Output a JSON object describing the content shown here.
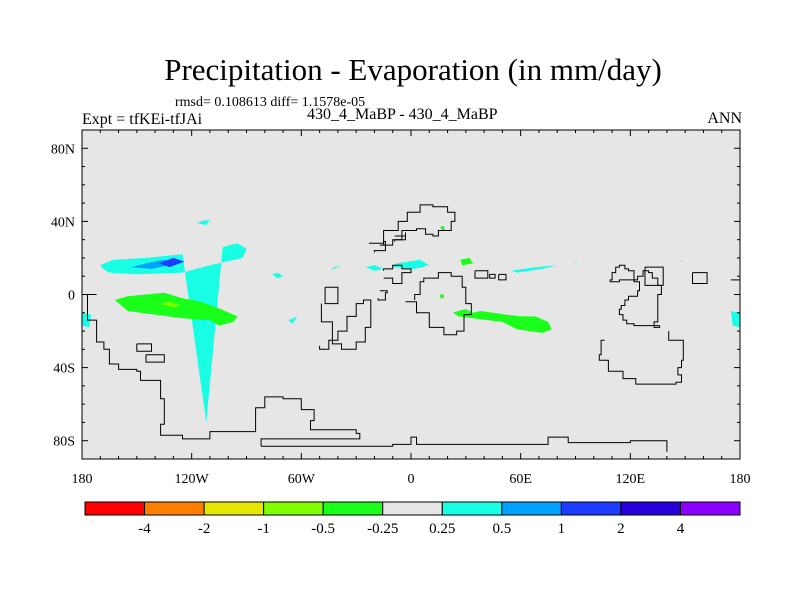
{
  "header": {
    "title": "Precipitation - Evaporation (in mm/day)",
    "stats": "rmsd= 0.108613 diff= 1.1578e-05",
    "expt": "Expt = tfKEi-tfJAi",
    "cases": "430_4_MaBP - 430_4_MaBP",
    "season": "ANN"
  },
  "chart_data": {
    "type": "heatmap",
    "title": "Precipitation - Evaporation (in mm/day)",
    "xlabel": "",
    "ylabel": "",
    "xlim": [
      -180,
      180
    ],
    "ylim": [
      -90,
      90
    ],
    "x_ticks": [
      {
        "value": -180,
        "label": "180"
      },
      {
        "value": -120,
        "label": "120W"
      },
      {
        "value": -60,
        "label": "60W"
      },
      {
        "value": 0,
        "label": "0"
      },
      {
        "value": 60,
        "label": "60E"
      },
      {
        "value": 120,
        "label": "120E"
      },
      {
        "value": 180,
        "label": "180"
      }
    ],
    "y_ticks": [
      {
        "value": 80,
        "label": "80N"
      },
      {
        "value": 40,
        "label": "40N"
      },
      {
        "value": 0,
        "label": "0"
      },
      {
        "value": -40,
        "label": "40S"
      },
      {
        "value": -80,
        "label": "80S"
      }
    ],
    "background_color": "#e6e6e6",
    "levels": [
      {
        "label": "-4",
        "value": -4
      },
      {
        "label": "-2",
        "value": -2
      },
      {
        "label": "-1",
        "value": -1
      },
      {
        "label": "-0.5",
        "value": -0.5
      },
      {
        "label": "-0.25",
        "value": -0.25
      },
      {
        "label": "0.25",
        "value": 0.25
      },
      {
        "label": "0.5",
        "value": 0.5
      },
      {
        "label": "1",
        "value": 1
      },
      {
        "label": "2",
        "value": 2
      },
      {
        "label": "4",
        "value": 4
      }
    ],
    "colors": [
      "#ff0000",
      "#ff8000",
      "#e6e600",
      "#80ff00",
      "#19ff19",
      "#e6e6e6",
      "#19ffe6",
      "#00a0ff",
      "#1e3cff",
      "#2800dc",
      "#8c00ff"
    ],
    "anomaly_regions": [
      {
        "band": "0.25",
        "color": "#19ffe6",
        "lon": [
          -168.5,
          -170,
          -163,
          -145,
          -125,
          -112,
          -103,
          -95,
          -90,
          -92,
          -110,
          -125,
          -150,
          -165
        ],
        "lat": [
          14,
          16,
          19,
          20,
          22,
          -70,
          26,
          28,
          25,
          20,
          16,
          12,
          11,
          12
        ]
      },
      {
        "band": "0.5",
        "color": "#00a0ff",
        "lon": [
          -153,
          -145,
          -135,
          -128,
          -142
        ],
        "lat": [
          15,
          17,
          19,
          17,
          14
        ]
      },
      {
        "band": "1",
        "color": "#1e3cff",
        "lon": [
          -138,
          -130,
          -124,
          -132
        ],
        "lat": [
          17,
          20,
          18,
          15
        ]
      },
      {
        "band": "0.25",
        "color": "#19ffe6",
        "lon": [
          -76,
          -73,
          -70,
          -73
        ],
        "lat": [
          11,
          12,
          10,
          9
        ]
      },
      {
        "band": "0.25",
        "color": "#19ffe6",
        "lon": [
          -42,
          -38,
          -44
        ],
        "lat": [
          15,
          16,
          13
        ]
      },
      {
        "band": "0.25",
        "color": "#19ffe6",
        "lon": [
          -25,
          -20,
          -15,
          -20
        ],
        "lat": [
          15,
          16,
          14,
          13
        ]
      },
      {
        "band": "0.25",
        "color": "#19ffe6",
        "lon": [
          -8,
          5,
          10,
          2,
          -10
        ],
        "lat": [
          17,
          19,
          16,
          14,
          15
        ]
      },
      {
        "band": "0.25",
        "color": "#19ffe6",
        "lon": [
          -67,
          -62,
          -65
        ],
        "lat": [
          -14,
          -12,
          -16
        ]
      },
      {
        "band": "0.25",
        "color": "#19ffe6",
        "lon": [
          -115,
          -110,
          -112,
          -117
        ],
        "lat": [
          40,
          41,
          38,
          39
        ]
      },
      {
        "band": "0.25",
        "color": "#19ffe6",
        "lon": [
          55,
          68,
          80,
          72,
          58
        ],
        "lat": [
          13,
          15,
          16,
          14,
          12
        ]
      },
      {
        "band": "0.25",
        "color": "#19ffe6",
        "lon": [
          89,
          91,
          90
        ],
        "lat": [
          17,
          18,
          17
        ]
      },
      {
        "band": "0.25",
        "color": "#19ffe6",
        "lon": [
          147,
          149,
          148
        ],
        "lat": [
          18,
          19,
          18
        ]
      },
      {
        "band": "0.25",
        "color": "#19ffe6",
        "lon": [
          -180,
          -175,
          -176,
          -180
        ],
        "lat": [
          -10,
          -11,
          -18,
          -17
        ]
      },
      {
        "band": "0.25",
        "color": "#19ffe6",
        "lon": [
          175,
          180,
          180,
          176
        ],
        "lat": [
          -9,
          -10,
          -18,
          -17
        ]
      },
      {
        "band": "-0.25",
        "color": "#19ff19",
        "lon": [
          -162,
          -155,
          -145,
          -135,
          -125,
          -115,
          -104,
          -95,
          -97,
          -105,
          -110,
          -125,
          -140,
          -155
        ],
        "lat": [
          -3,
          -1,
          0,
          1,
          -2,
          -4,
          -8,
          -12,
          -15,
          -17,
          -14,
          -13,
          -11,
          -9
        ]
      },
      {
        "band": "-0.5",
        "color": "#80ff00",
        "lon": [
          -138,
          -132,
          -126,
          -130
        ],
        "lat": [
          -5,
          -4,
          -6,
          -7
        ]
      },
      {
        "band": "-0.25",
        "color": "#19ff19",
        "lon": [
          27,
          32,
          34,
          28
        ],
        "lat": [
          19,
          20,
          17,
          16
        ]
      },
      {
        "band": "-0.25",
        "color": "#19ff19",
        "lon": [
          16,
          18,
          18.5,
          17
        ],
        "lat": [
          37,
          37.5,
          35.5,
          35
        ]
      },
      {
        "band": "-0.25",
        "color": "#19ff19",
        "lon": [
          16,
          18,
          18,
          16
        ],
        "lat": [
          0,
          0,
          -2,
          -2
        ]
      },
      {
        "band": "-0.25",
        "color": "#19ff19",
        "lon": [
          23,
          26,
          30,
          34,
          38,
          45,
          52,
          60,
          68,
          75,
          77,
          72,
          65,
          58,
          50,
          42,
          34,
          26
        ],
        "lat": [
          -10,
          -9,
          -8,
          -10,
          -9,
          -10,
          -11,
          -12,
          -12,
          -15,
          -19,
          -21,
          -20,
          -19,
          -15,
          -14,
          -13,
          -12
        ]
      }
    ],
    "outline_lon_lat": [
      [
        [
          -172,
          0
        ],
        [
          -177,
          -14
        ],
        [
          -172,
          -26
        ],
        [
          -168,
          -30
        ],
        [
          -165,
          -38
        ],
        [
          -160,
          -41
        ],
        [
          -150,
          -42
        ],
        [
          -148,
          -47
        ],
        [
          -137,
          -57
        ],
        [
          -135,
          -71
        ],
        [
          -137,
          -77
        ],
        [
          -125,
          -79
        ],
        [
          -110,
          -75
        ],
        [
          -90,
          -75
        ],
        [
          -85,
          -62
        ],
        [
          -80,
          -56
        ],
        [
          -70,
          -57
        ],
        [
          -60,
          -63
        ],
        [
          -53,
          -69
        ],
        [
          -55,
          -74
        ],
        [
          -40,
          -74
        ],
        [
          -30,
          -76
        ],
        [
          -28,
          -79
        ],
        [
          -82,
          -80
        ],
        [
          -82,
          -83
        ]
      ],
      [
        [
          -82,
          -83
        ],
        [
          -70,
          -83
        ],
        [
          -10,
          -82
        ],
        [
          -3,
          -82
        ],
        [
          0,
          -78
        ],
        [
          3,
          -82
        ],
        [
          75,
          -82
        ],
        [
          75,
          -78
        ],
        [
          86,
          -78
        ],
        [
          86,
          -81
        ],
        [
          103,
          -81
        ],
        [
          120,
          -80
        ],
        [
          130,
          -80
        ],
        [
          140,
          -82
        ],
        [
          140,
          -86
        ]
      ],
      [
        [
          106,
          -25
        ],
        [
          104,
          -33
        ],
        [
          103,
          -36
        ],
        [
          108,
          -42
        ],
        [
          116,
          -46
        ],
        [
          123,
          -49
        ],
        [
          132,
          -49
        ],
        [
          139,
          -49
        ],
        [
          145,
          -48
        ],
        [
          148,
          -44
        ],
        [
          146,
          -40
        ],
        [
          148,
          -36
        ],
        [
          149,
          -25
        ],
        [
          143,
          -25
        ],
        [
          141,
          -20
        ]
      ],
      [
        [
          136,
          -17
        ],
        [
          133,
          -15
        ],
        [
          135,
          0
        ],
        [
          137,
          5
        ],
        [
          135,
          9
        ],
        [
          132,
          12
        ],
        [
          130,
          13
        ],
        [
          127,
          10
        ],
        [
          124,
          8
        ],
        [
          119,
          8
        ],
        [
          114,
          7
        ],
        [
          109,
          8
        ],
        [
          110,
          12
        ],
        [
          112,
          15
        ],
        [
          114,
          16
        ],
        [
          117,
          14
        ],
        [
          119,
          13
        ],
        [
          122,
          7
        ],
        [
          125,
          2
        ],
        [
          124,
          -1
        ],
        [
          119,
          -3
        ],
        [
          117,
          -6
        ],
        [
          115,
          -8
        ],
        [
          114,
          -11
        ],
        [
          116,
          -14
        ],
        [
          118,
          -16
        ],
        [
          122,
          -17
        ],
        [
          128,
          -17
        ],
        [
          133,
          -18
        ],
        [
          136,
          -17
        ]
      ],
      [
        [
          -49,
          -5
        ],
        [
          -49,
          -15
        ],
        [
          -43,
          -27
        ],
        [
          -38,
          -30
        ],
        [
          -30,
          -26
        ],
        [
          -25,
          -18
        ],
        [
          -22,
          -10
        ],
        [
          -22,
          -3
        ],
        [
          -26,
          -5
        ],
        [
          -30,
          -12
        ],
        [
          -35,
          -20
        ],
        [
          -40,
          -25
        ],
        [
          -45,
          -30
        ],
        [
          -50,
          -28
        ]
      ],
      [
        [
          -3,
          -4
        ],
        [
          3,
          -10
        ],
        [
          10,
          -18
        ],
        [
          18,
          -22
        ],
        [
          25,
          -20
        ],
        [
          29,
          -11
        ],
        [
          33,
          -5
        ],
        [
          30,
          4
        ],
        [
          28,
          10
        ],
        [
          22,
          12
        ],
        [
          15,
          9
        ],
        [
          7,
          7
        ],
        [
          5,
          0
        ],
        [
          2,
          -3
        ]
      ],
      [
        [
          -17,
          2
        ],
        [
          -13,
          1
        ],
        [
          -14,
          -3
        ],
        [
          -18,
          -2
        ]
      ],
      [
        [
          -47,
          4
        ],
        [
          -40,
          4
        ],
        [
          -40,
          -5
        ],
        [
          -47,
          -5
        ],
        [
          -47,
          4
        ]
      ],
      [
        [
          -150,
          -27
        ],
        [
          -142,
          -27
        ],
        [
          -142,
          -31
        ],
        [
          -150,
          -31
        ],
        [
          -150,
          -27
        ]
      ],
      [
        [
          -145,
          -33
        ],
        [
          -135,
          -33
        ],
        [
          -135,
          -37
        ],
        [
          -145,
          -37
        ],
        [
          -145,
          -33
        ]
      ],
      [
        [
          -15,
          9
        ],
        [
          -10,
          6
        ],
        [
          -5,
          12
        ],
        [
          0,
          14
        ],
        [
          -5,
          16
        ],
        [
          -10,
          14
        ],
        [
          -15,
          13
        ]
      ],
      [
        [
          -17,
          27
        ],
        [
          -15,
          35
        ],
        [
          -7,
          40
        ],
        [
          -2,
          45
        ],
        [
          5,
          49
        ],
        [
          12,
          48
        ],
        [
          20,
          45
        ],
        [
          24,
          40
        ],
        [
          22,
          35
        ],
        [
          15,
          32
        ],
        [
          12,
          33
        ],
        [
          8,
          36
        ],
        [
          3,
          35
        ],
        [
          -5,
          30
        ],
        [
          -10,
          27
        ],
        [
          -17,
          27
        ]
      ],
      [
        [
          -23,
          28
        ],
        [
          -15,
          29
        ],
        [
          -14,
          24
        ],
        [
          -20,
          23
        ]
      ],
      [
        [
          -9,
          32
        ],
        [
          -3,
          34
        ],
        [
          -3,
          30
        ],
        [
          -9,
          29
        ]
      ],
      [
        [
          35,
          13
        ],
        [
          42,
          13
        ],
        [
          42,
          9
        ],
        [
          35,
          9
        ],
        [
          35,
          13
        ]
      ],
      [
        [
          43,
          11
        ],
        [
          46,
          11
        ],
        [
          46,
          9
        ],
        [
          43,
          9
        ],
        [
          43,
          11
        ]
      ],
      [
        [
          48,
          11
        ],
        [
          52,
          11
        ],
        [
          52,
          8
        ],
        [
          48,
          8
        ],
        [
          48,
          11
        ]
      ],
      [
        [
          128,
          15
        ],
        [
          138,
          15
        ],
        [
          138,
          5
        ],
        [
          128,
          5
        ],
        [
          128,
          15
        ]
      ],
      [
        [
          154,
          12
        ],
        [
          162,
          12
        ],
        [
          162,
          6
        ],
        [
          154,
          6
        ],
        [
          154,
          12
        ]
      ],
      [
        [
          175,
          8
        ],
        [
          180,
          8
        ]
      ]
    ]
  }
}
